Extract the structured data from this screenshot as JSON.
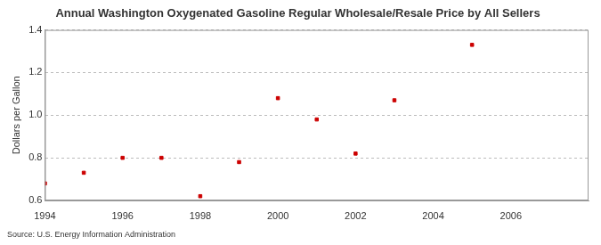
{
  "chart_data": {
    "type": "scatter",
    "title": "Annual Washington Oxygenated Gasoline Regular Wholesale/Resale Price by All Sellers",
    "y_label": "Dollars per Gallon",
    "source": "Source: U.S. Energy Information Administration",
    "x": [
      1994,
      1995,
      1996,
      1997,
      1998,
      1999,
      2000,
      2001,
      2002,
      2003,
      2005
    ],
    "values": [
      0.68,
      0.73,
      0.8,
      0.8,
      0.62,
      0.78,
      1.08,
      0.98,
      0.82,
      1.07,
      1.33
    ],
    "color": "#cc0000",
    "marker": "square",
    "xlim": [
      1994,
      2008
    ],
    "xticks": [
      1994,
      1996,
      1998,
      2000,
      2002,
      2004,
      2006
    ],
    "ylim": [
      0.6,
      1.4
    ],
    "yticks": [
      0.6,
      0.8,
      {
        "value": 1.0,
        "label": "1.0"
      },
      1.2,
      1.4
    ],
    "grid": true
  }
}
